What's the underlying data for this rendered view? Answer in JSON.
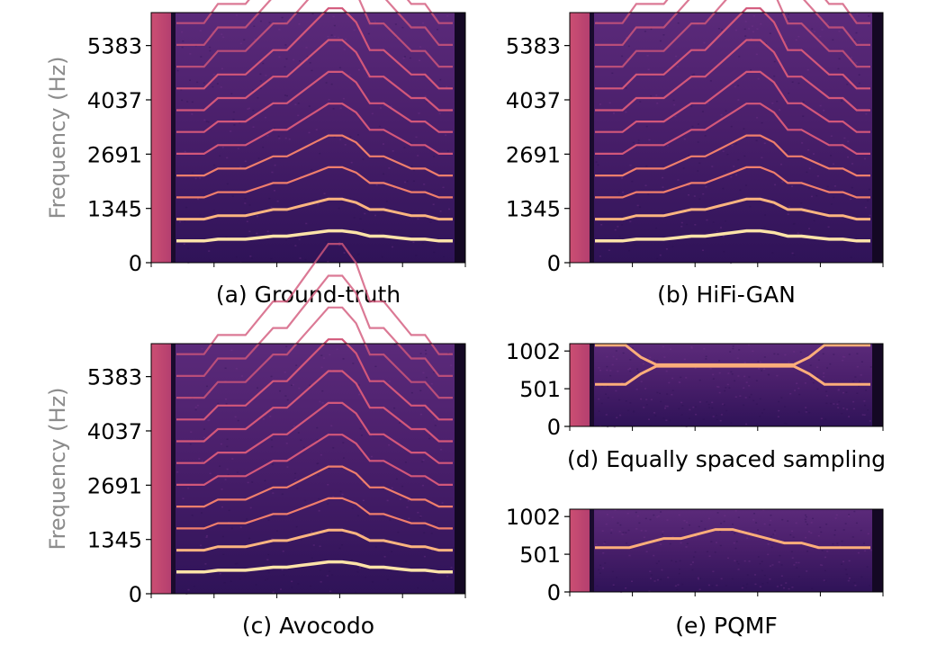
{
  "chart_data": [
    {
      "type": "heatmap",
      "subplot": "a",
      "caption": "(a) Ground-truth",
      "ylabel": "Frequency (Hz)",
      "yticks": [
        0,
        1345,
        2691,
        4037,
        5383
      ],
      "ylim": [
        0,
        6200
      ],
      "xticks_labeled": false,
      "colormap": "magma",
      "harmonic_profile": [
        1,
        1,
        1,
        1.08,
        1.08,
        1.08,
        1.15,
        1.22,
        1.22,
        1.3,
        1.38,
        1.46,
        1.46,
        1.38,
        1.22,
        1.22,
        1.15,
        1.08,
        1.08,
        1.0,
        1.0
      ],
      "base_frequency": 540,
      "harmonics": 11
    },
    {
      "type": "heatmap",
      "subplot": "b",
      "caption": "(b) HiFi-GAN",
      "ylabel": "",
      "yticks": [
        0,
        1345,
        2691,
        4037,
        5383
      ],
      "ylim": [
        0,
        6200
      ],
      "xticks_labeled": false,
      "colormap": "magma",
      "harmonic_profile": [
        1,
        1,
        1,
        1.08,
        1.08,
        1.08,
        1.15,
        1.22,
        1.22,
        1.3,
        1.38,
        1.46,
        1.46,
        1.38,
        1.22,
        1.22,
        1.15,
        1.08,
        1.08,
        1.0,
        1.0
      ],
      "base_frequency": 540,
      "harmonics": 11
    },
    {
      "type": "heatmap",
      "subplot": "c",
      "caption": "(c) Avocodo",
      "ylabel": "Frequency (Hz)",
      "yticks": [
        0,
        1345,
        2691,
        4037,
        5383
      ],
      "ylim": [
        0,
        6200
      ],
      "xticks_labeled": false,
      "colormap": "magma",
      "harmonic_profile": [
        1,
        1,
        1,
        1.08,
        1.08,
        1.08,
        1.15,
        1.22,
        1.22,
        1.3,
        1.38,
        1.46,
        1.46,
        1.38,
        1.22,
        1.22,
        1.15,
        1.08,
        1.08,
        1.0,
        1.0
      ],
      "base_frequency": 540,
      "harmonics": 11
    },
    {
      "type": "heatmap",
      "subplot": "d",
      "caption": "(d) Equally spaced sampling",
      "ylabel": "",
      "yticks": [
        0,
        501,
        1002
      ],
      "ylim": [
        0,
        1100
      ],
      "xticks_labeled": false,
      "colormap": "magma",
      "lines": [
        {
          "kind": "upper",
          "values": [
            1080,
            1080,
            1080,
            920,
            820,
            820,
            820,
            820,
            820,
            820,
            820,
            820,
            820,
            820,
            920,
            1080,
            1080,
            1080,
            1080
          ]
        },
        {
          "kind": "lower",
          "values": [
            560,
            560,
            560,
            700,
            800,
            800,
            800,
            800,
            800,
            800,
            800,
            800,
            800,
            800,
            700,
            560,
            560,
            560,
            560
          ]
        }
      ]
    },
    {
      "type": "heatmap",
      "subplot": "e",
      "caption": "(e) PQMF",
      "ylabel": "",
      "yticks": [
        0,
        501,
        1002
      ],
      "ylim": [
        0,
        1100
      ],
      "xticks_labeled": false,
      "colormap": "magma",
      "lines": [
        {
          "kind": "main",
          "values": [
            590,
            590,
            590,
            650,
            710,
            710,
            770,
            830,
            830,
            770,
            710,
            650,
            650,
            590,
            590,
            590,
            590
          ]
        }
      ]
    }
  ]
}
